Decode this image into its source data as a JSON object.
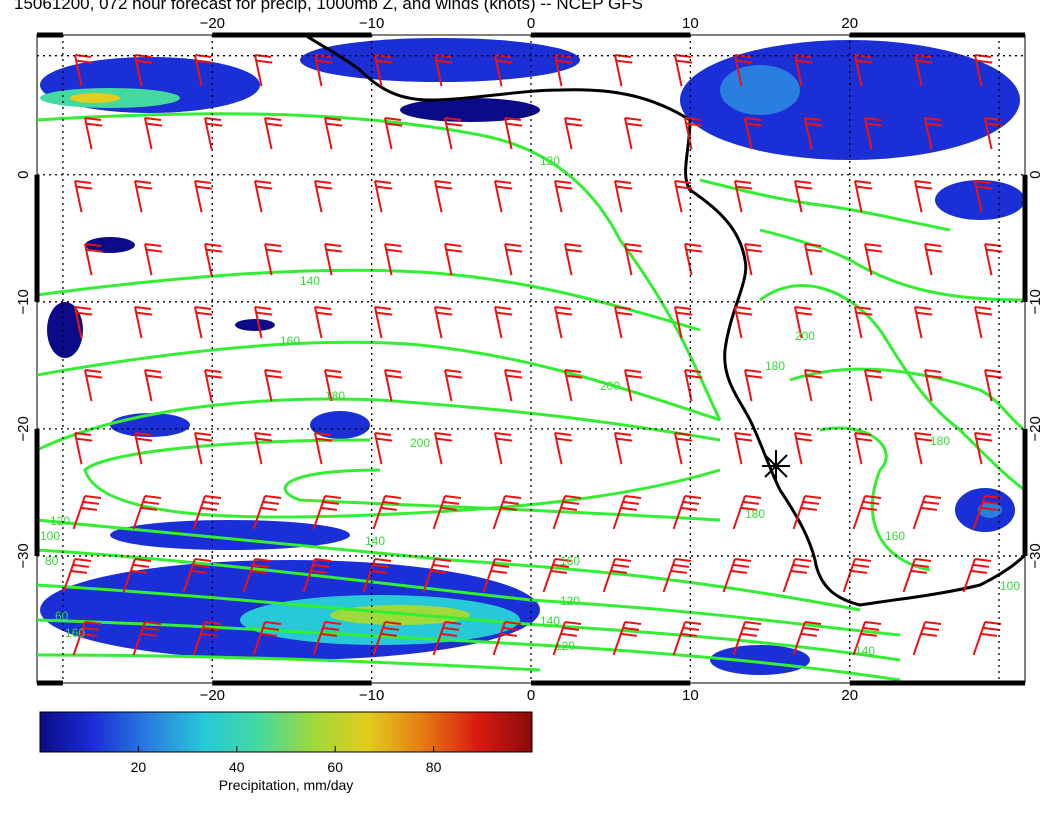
{
  "title": "15061200, 072 hour forecast for precip, 1000mb Z, and winds (knots) -- NCEP GFS",
  "map": {
    "lon_range": [
      -31,
      31
    ],
    "lat_range": [
      -40,
      11
    ],
    "lon_ticks": [
      -20,
      -10,
      0,
      10,
      20
    ],
    "lat_ticks": [
      0,
      -10,
      -20,
      -30
    ],
    "lon_tick_labels": [
      "−20",
      "−10",
      "0",
      "10",
      "20"
    ],
    "lat_tick_labels": [
      "0",
      "−10",
      "−20",
      "−30"
    ],
    "gridlines": true,
    "colors": {
      "contour": "#33ee33",
      "wind_barb": "#ee1111",
      "coastline": "#000000",
      "grid": "#000000"
    },
    "contour_labels": [
      "120",
      "140",
      "160",
      "180",
      "200",
      "200",
      "180",
      "160",
      "140",
      "120",
      "100",
      "80",
      "60",
      "160",
      "180",
      "200",
      "180",
      "160",
      "140",
      "120",
      "140",
      "120",
      "100"
    ],
    "station_marker": "asterisk-icon"
  },
  "colorbar": {
    "ticks": [
      "20",
      "40",
      "60",
      "80"
    ],
    "tick_values": [
      20,
      40,
      60,
      80
    ],
    "range": [
      0,
      100
    ],
    "label": "Precipitation, mm/day",
    "stops": [
      "#0b0b8a",
      "#1a2fd6",
      "#2a7ee0",
      "#27c8d8",
      "#44d9a0",
      "#9fd93a",
      "#e2cc1e",
      "#e57c12",
      "#d81b10",
      "#8a0a0a"
    ]
  }
}
